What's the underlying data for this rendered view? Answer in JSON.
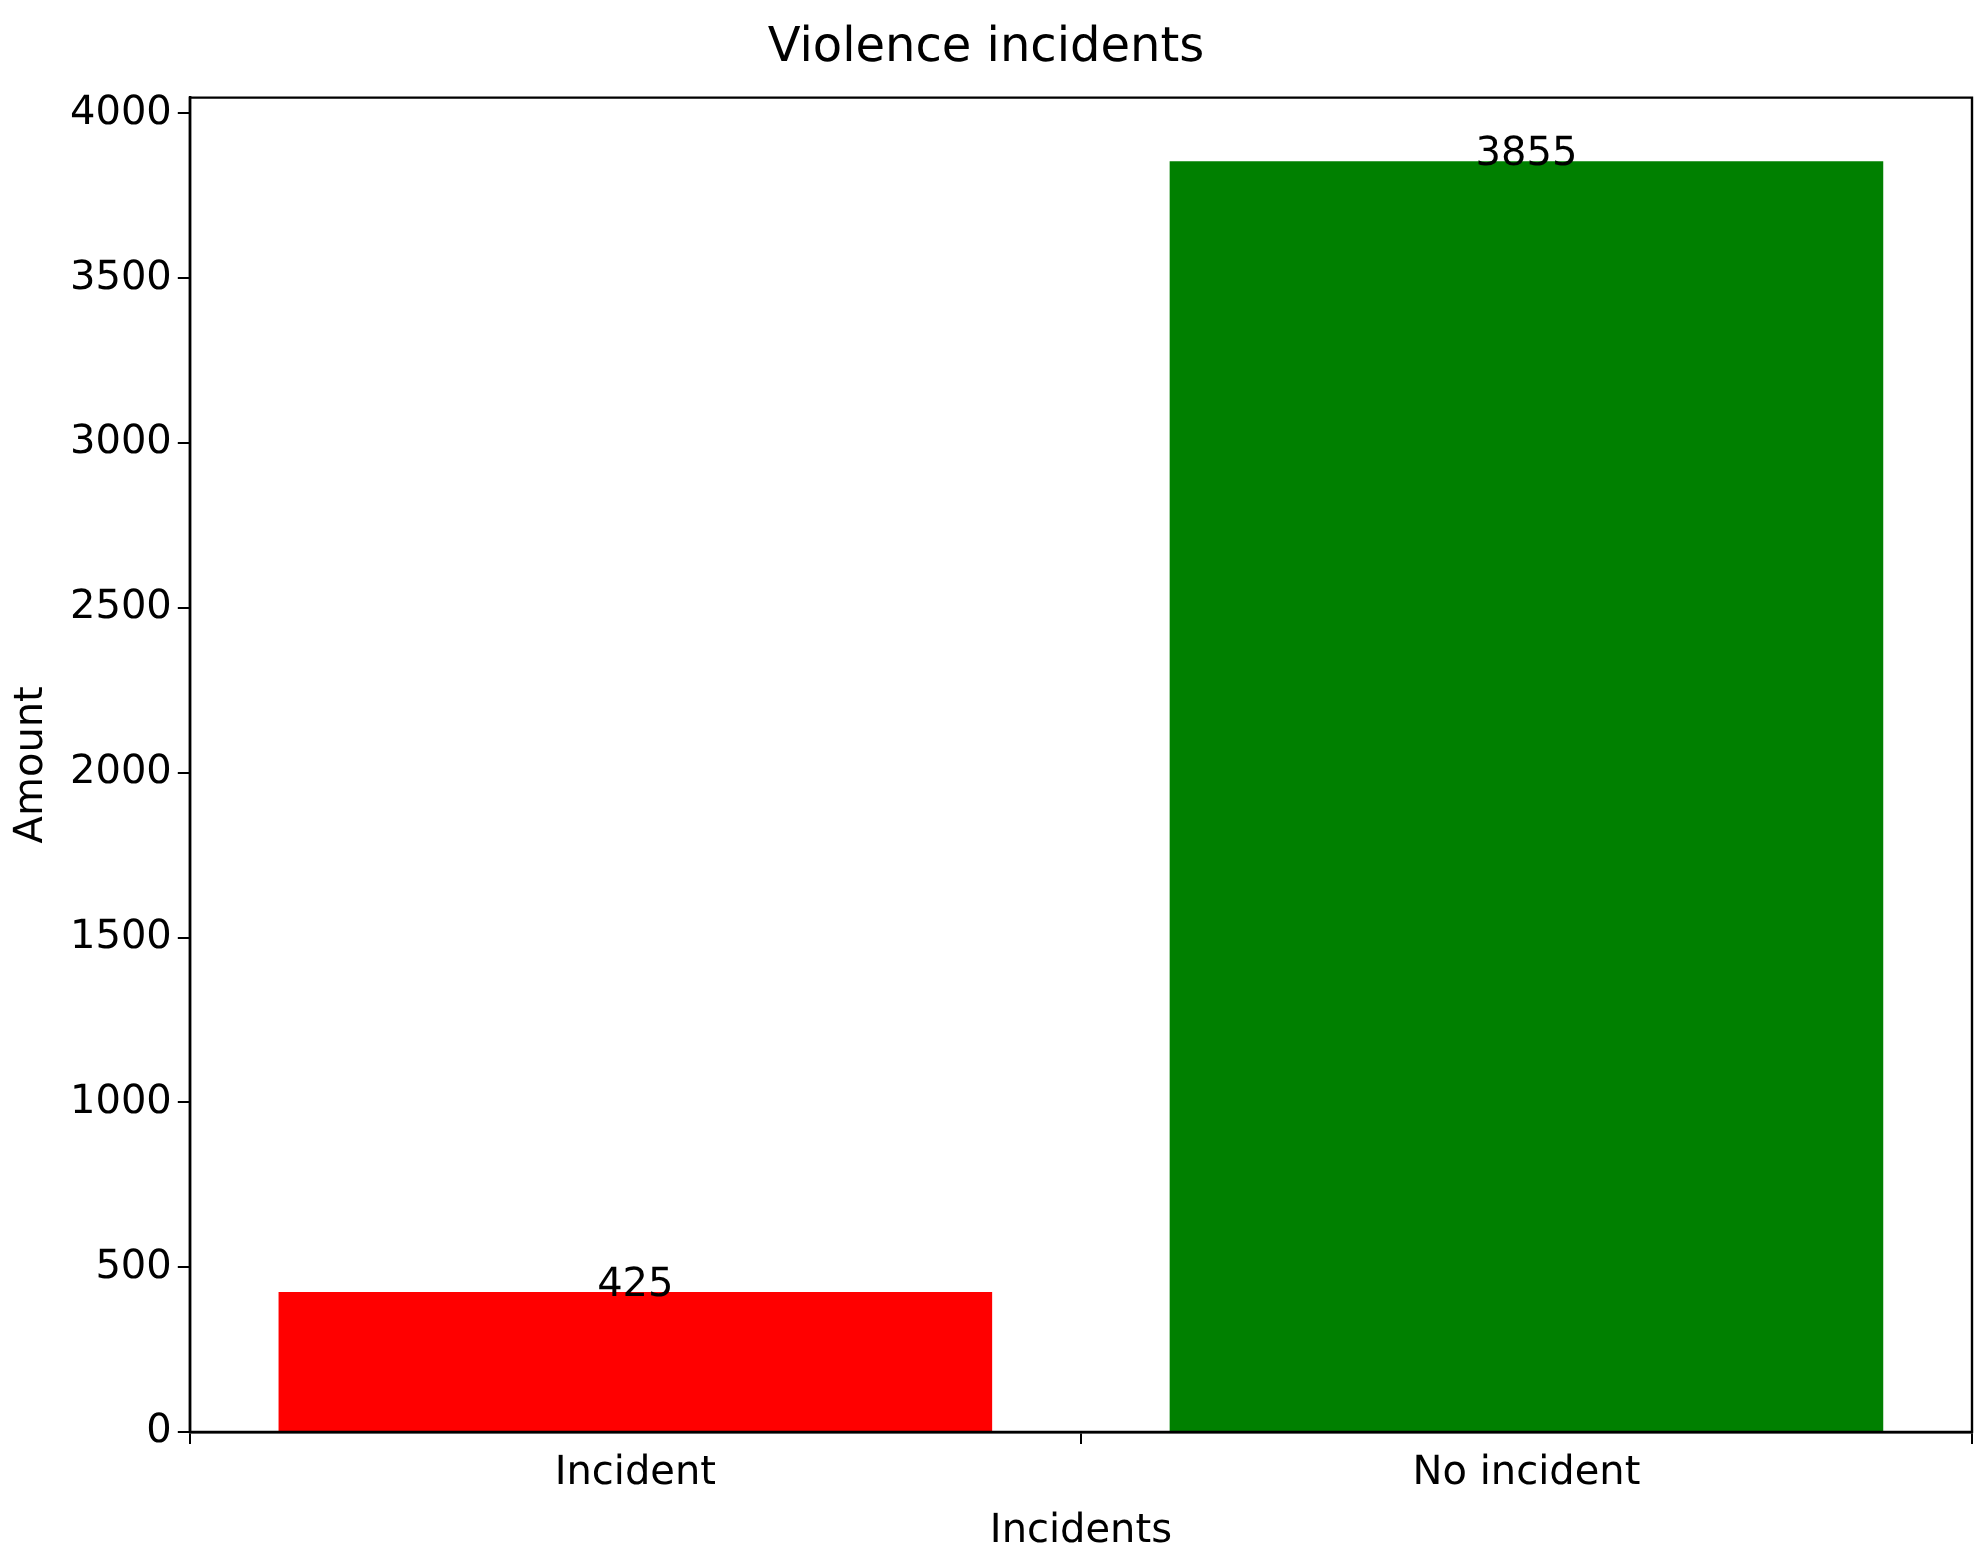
{
  "chart_data": {
    "type": "bar",
    "title": "Violence incidents",
    "xlabel": "Incidents",
    "ylabel": "Amount",
    "categories": [
      "Incident",
      "No incident"
    ],
    "values": [
      425,
      3855
    ],
    "colors": [
      "#ff0000",
      "#008000"
    ],
    "ylim": [
      0,
      4048
    ],
    "yticks": [
      0,
      500,
      1000,
      1500,
      2000,
      2500,
      3000,
      3500,
      4000
    ],
    "data_labels": true,
    "grid": false,
    "legend": false
  }
}
